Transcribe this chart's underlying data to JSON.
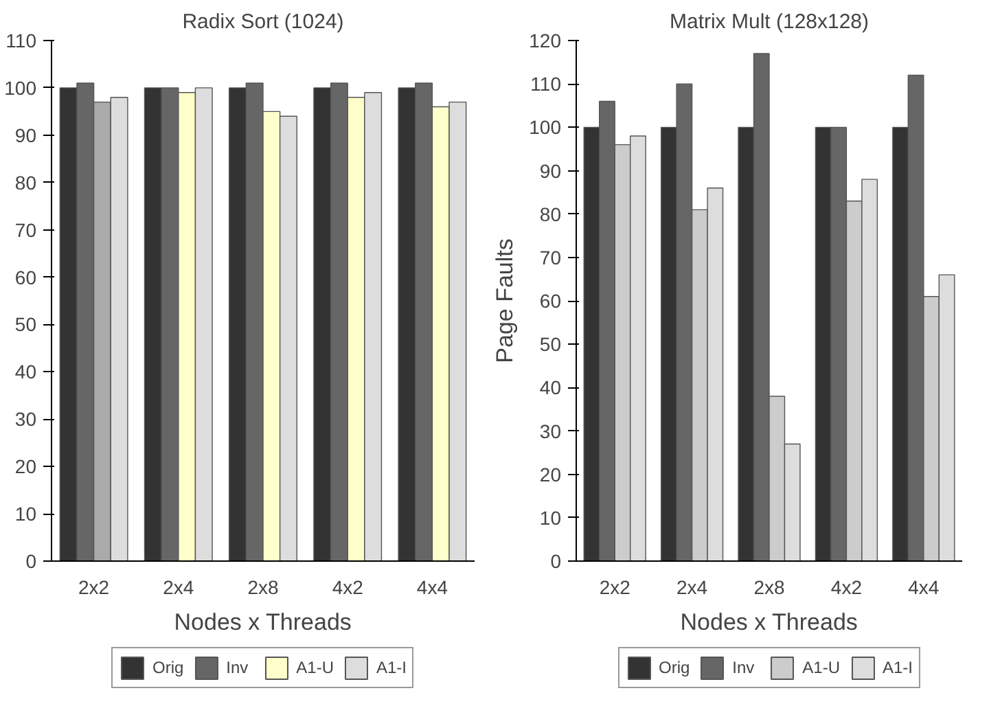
{
  "chart_data": [
    {
      "type": "bar",
      "title": "Radix Sort (1024)",
      "xlabel": "Nodes x Threads",
      "categories": [
        "2x2",
        "2x4",
        "2x8",
        "4x2",
        "4x4"
      ],
      "series": [
        {
          "name": "Orig",
          "color": "#333333",
          "values": [
            100,
            100,
            100,
            100,
            100
          ]
        },
        {
          "name": "Inv",
          "color": "#666666",
          "values": [
            101,
            100,
            101,
            101,
            101
          ]
        },
        {
          "name": "A1-U",
          "color": "#ffffcc",
          "colors": [
            "#aaaaaa",
            "#ffffcc",
            "#ffffcc",
            "#ffffcc",
            "#ffffcc"
          ],
          "values": [
            97,
            99,
            95,
            98,
            96
          ]
        },
        {
          "name": "A1-I",
          "color": "#dddddd",
          "values": [
            98,
            100,
            94,
            99,
            97
          ]
        }
      ],
      "ylim": [
        0,
        110
      ],
      "yticks": [
        0,
        10,
        20,
        30,
        40,
        50,
        60,
        70,
        80,
        90,
        100,
        110
      ],
      "grid": false,
      "legend": "bottom"
    },
    {
      "type": "bar",
      "title": "Matrix Mult (128x128)",
      "xlabel": "Nodes x Threads",
      "ylabel": "Page Faults",
      "categories": [
        "2x2",
        "2x4",
        "2x8",
        "4x2",
        "4x4"
      ],
      "series": [
        {
          "name": "Orig",
          "color": "#333333",
          "values": [
            100,
            100,
            100,
            100,
            100
          ]
        },
        {
          "name": "Inv",
          "color": "#666666",
          "values": [
            106,
            110,
            117,
            100,
            112
          ]
        },
        {
          "name": "A1-U",
          "color": "#cccccc",
          "values": [
            96,
            81,
            38,
            83,
            61
          ]
        },
        {
          "name": "A1-I",
          "color": "#dddddd",
          "values": [
            98,
            86,
            27,
            88,
            66
          ]
        }
      ],
      "ylim": [
        0,
        120
      ],
      "yticks": [
        0,
        10,
        20,
        30,
        40,
        50,
        60,
        70,
        80,
        90,
        100,
        110,
        120
      ],
      "grid": false,
      "legend": "bottom"
    }
  ]
}
